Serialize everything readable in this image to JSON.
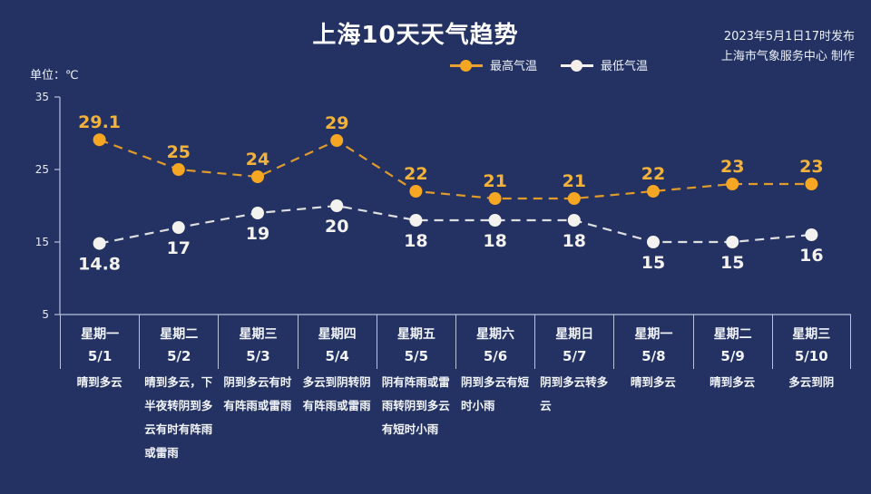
{
  "header": {
    "title": "上海10天天气趋势",
    "publish_time": "2023年5月1日17时发布",
    "producer": "上海市气象服务中心 制作",
    "unit_label": "单位：℃"
  },
  "legend": {
    "high": {
      "label": "最高气温",
      "color": "#f5a623"
    },
    "low": {
      "label": "最低气温",
      "color": "#f4efe8"
    }
  },
  "colors": {
    "background": "#233263",
    "axis": "#b8c2db",
    "high_line": "#f5a623",
    "high_label": "#f3b23a",
    "low_line": "#f4f2ee"
  },
  "days": [
    {
      "weekday": "星期一",
      "date": "5/1",
      "weather": "晴到多云"
    },
    {
      "weekday": "星期二",
      "date": "5/2",
      "weather": "晴到多云，下半夜转阴到多云有时有阵雨或雷雨"
    },
    {
      "weekday": "星期三",
      "date": "5/3",
      "weather": "阴到多云有时有阵雨或雷雨"
    },
    {
      "weekday": "星期四",
      "date": "5/4",
      "weather": "多云到阴转阴有阵雨或雷雨"
    },
    {
      "weekday": "星期五",
      "date": "5/5",
      "weather": "阴有阵雨或雷雨转阴到多云有短时小雨"
    },
    {
      "weekday": "星期六",
      "date": "5/6",
      "weather": "阴到多云有短时小雨"
    },
    {
      "weekday": "星期日",
      "date": "5/7",
      "weather": "阴到多云转多云"
    },
    {
      "weekday": "星期一",
      "date": "5/8",
      "weather": "晴到多云"
    },
    {
      "weekday": "星期二",
      "date": "5/9",
      "weather": "晴到多云"
    },
    {
      "weekday": "星期三",
      "date": "5/10",
      "weather": "多云到阴"
    }
  ],
  "chart_data": {
    "type": "line",
    "title": "上海10天天气趋势",
    "subtitle": "2023年5月1日17时发布 / 上海市气象服务中心 制作",
    "xlabel": "",
    "ylabel": "单位：℃",
    "categories": [
      "5/1",
      "5/2",
      "5/3",
      "5/4",
      "5/5",
      "5/6",
      "5/7",
      "5/8",
      "5/9",
      "5/10"
    ],
    "series": [
      {
        "name": "最高气温",
        "values": [
          29.1,
          25,
          24,
          29,
          22,
          21,
          21,
          22,
          23,
          23
        ],
        "color": "#f5a623",
        "line_style": "dashed",
        "labels_position": "above"
      },
      {
        "name": "最低气温",
        "values": [
          14.8,
          17,
          19,
          20,
          18,
          18,
          18,
          15,
          15,
          16
        ],
        "color": "#f4f2ee",
        "line_style": "dashed",
        "labels_position": "below"
      }
    ],
    "yticks": [
      35,
      25,
      15,
      5
    ],
    "ylim": [
      5,
      35
    ],
    "grid": false,
    "legend_position": "top"
  }
}
